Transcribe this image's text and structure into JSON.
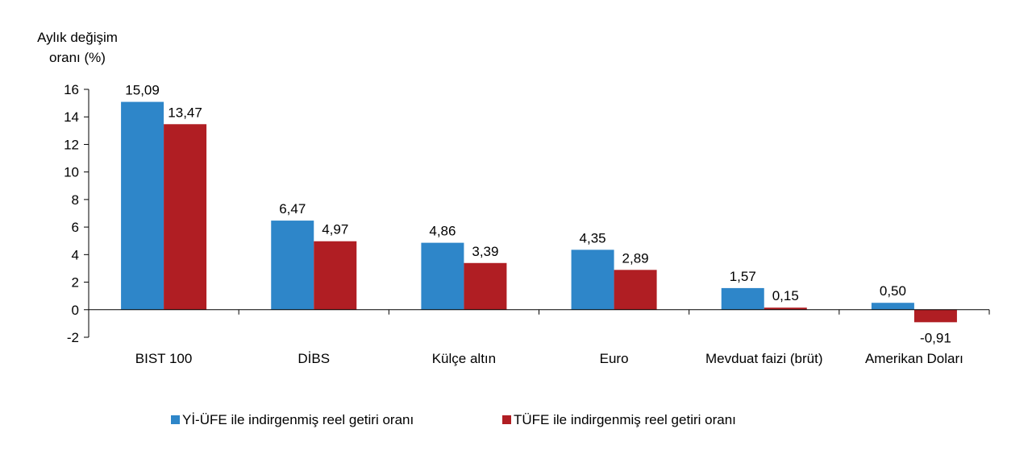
{
  "chart_data": {
    "type": "bar",
    "title": "",
    "ylabel_lines": [
      "Aylık değişim",
      "oranı (%)"
    ],
    "xlabel": "",
    "ylim": [
      -2,
      16
    ],
    "yticks": [
      -2,
      0,
      2,
      4,
      6,
      8,
      10,
      12,
      14,
      16
    ],
    "categories": [
      "BIST 100",
      "DİBS",
      "Külçe altın",
      "Euro",
      "Mevduat faizi (brüt)",
      "Amerikan Doları"
    ],
    "series": [
      {
        "name": "Yİ-ÜFE ile indirgenmiş reel getiri oranı",
        "color": "#2E86C9",
        "values": [
          15.09,
          6.47,
          4.86,
          4.35,
          1.57,
          0.5
        ],
        "labels": [
          "15,09",
          "6,47",
          "4,86",
          "4,35",
          "1,57",
          "0,50"
        ]
      },
      {
        "name": "TÜFE ile indirgenmiş reel getiri oranı",
        "color": "#B01E23",
        "values": [
          13.47,
          4.97,
          3.39,
          2.89,
          0.15,
          -0.91
        ],
        "labels": [
          "13,47",
          "4,97",
          "3,39",
          "2,89",
          "0,15",
          "-0,91"
        ]
      }
    ],
    "grid": false,
    "legend_position": "bottom"
  }
}
